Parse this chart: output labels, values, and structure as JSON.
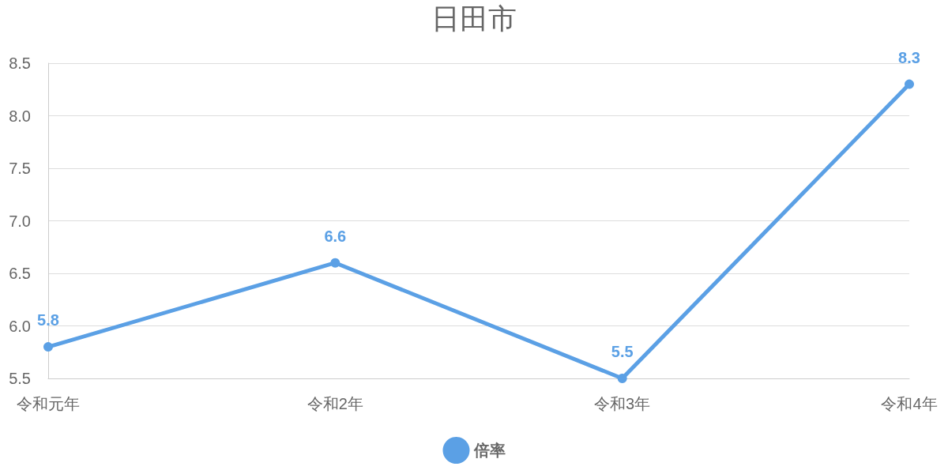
{
  "chart_data": {
    "type": "line",
    "title": "日田市",
    "categories": [
      "令和元年",
      "令和2年",
      "令和3年",
      "令和4年"
    ],
    "series": [
      {
        "name": "倍率",
        "color": "#5ba0e5",
        "values": [
          5.8,
          6.6,
          5.5,
          8.3
        ]
      }
    ],
    "ylim": [
      5.5,
      8.5
    ],
    "yticks": [
      5.5,
      {
        "value": 6,
        "label": "6.0"
      },
      6.5,
      {
        "value": 7,
        "label": "7.0"
      },
      7.5,
      {
        "value": 8,
        "label": "8.0"
      },
      8.5
    ],
    "grid": "y",
    "legend": "bottom",
    "marker": "circle",
    "line_style": "solid",
    "data_labels": true
  }
}
